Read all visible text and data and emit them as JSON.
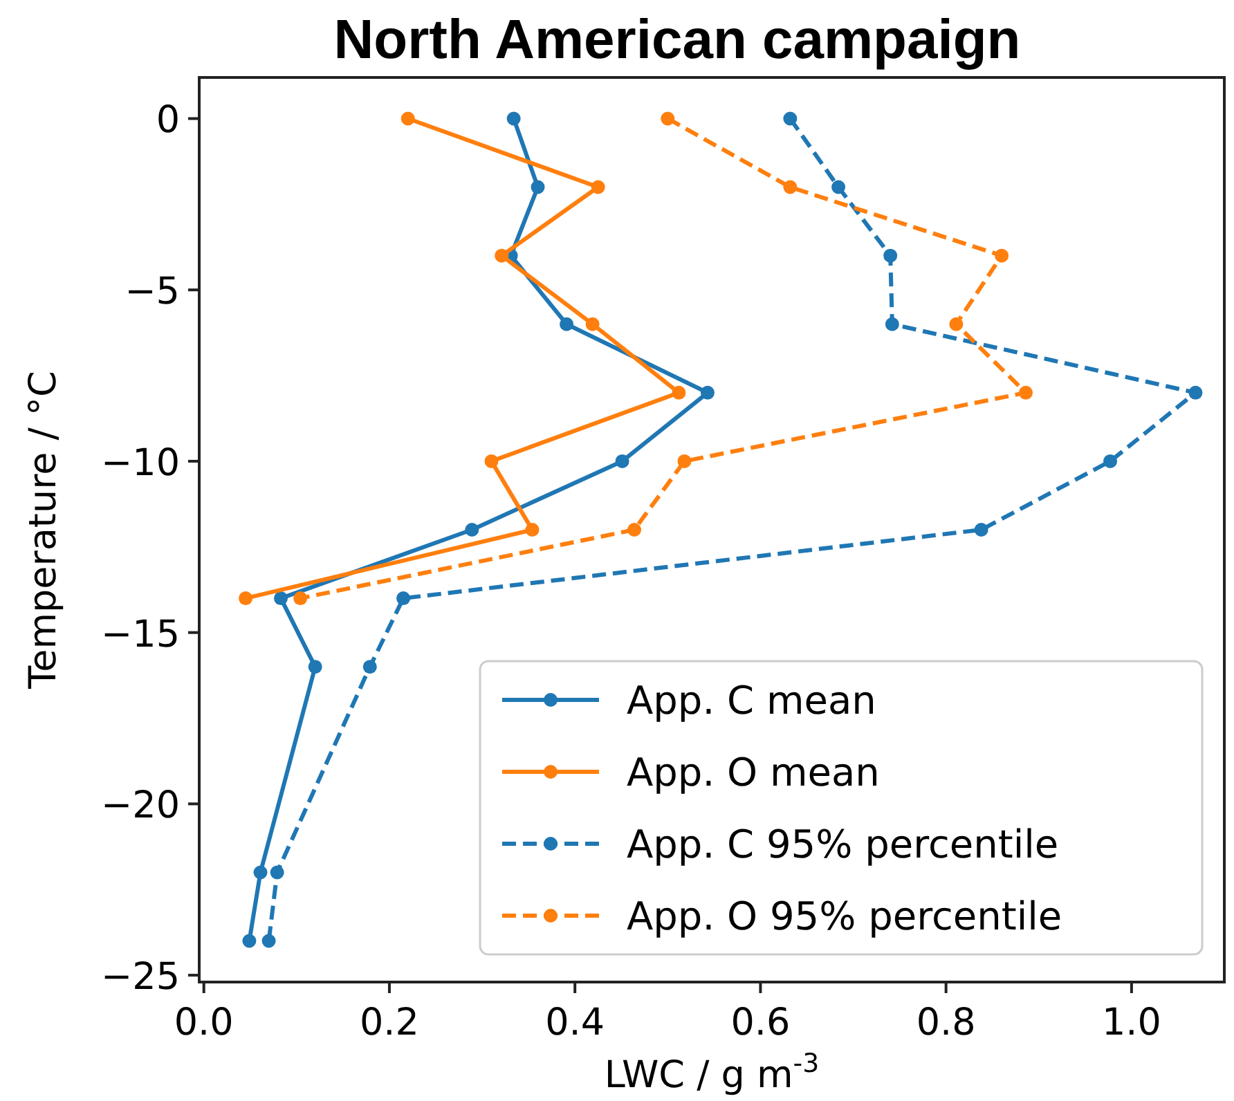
{
  "chart_data": {
    "type": "line",
    "title": "North American campaign",
    "orientation": "horizontal",
    "xlabel": "LWC / g m$^{-3}$",
    "ylabel": "Temperature / °C",
    "xlim": [
      -0.005,
      1.1
    ],
    "ylim": [
      -25.2,
      1.2
    ],
    "xticks": [
      {
        "value": 0,
        "label": "0.0"
      },
      {
        "value": 0.2,
        "label": "0.2"
      },
      {
        "value": 0.4,
        "label": "0.4"
      },
      {
        "value": 0.6,
        "label": "0.6"
      },
      {
        "value": 0.8,
        "label": "0.8"
      },
      {
        "value": 1.0,
        "label": "1.0"
      }
    ],
    "yticks": [
      0,
      {
        "value": -5,
        "label": "−5"
      },
      {
        "value": -10,
        "label": "−10"
      },
      {
        "value": -15,
        "label": "−15"
      },
      {
        "value": -20,
        "label": "−20"
      },
      {
        "value": -25,
        "label": "−25"
      }
    ],
    "marker": "circle",
    "legend": "bottom right",
    "grid": false,
    "series": [
      {
        "name": "App. C mean",
        "color": "#1f77b4",
        "line_style": "solid",
        "x": [
          0,
          -2,
          -4,
          -6,
          -8,
          -10,
          -12,
          -14,
          -16,
          -22,
          -24
        ],
        "values": [
          0.334,
          0.36,
          0.331,
          0.391,
          0.543,
          0.451,
          0.289,
          0.083,
          0.12,
          0.061,
          0.049
        ]
      },
      {
        "name": "App. O mean",
        "color": "#ff7f0e",
        "line_style": "solid",
        "x": [
          0,
          -2,
          -4,
          -6,
          -8,
          -10,
          -12,
          -14
        ],
        "values": [
          0.22,
          0.425,
          0.321,
          0.419,
          0.512,
          0.31,
          0.354,
          0.045
        ]
      },
      {
        "name": "App. C 95% percentile",
        "color": "#1f77b4",
        "line_style": "dashed",
        "x": [
          0,
          -2,
          -4,
          -6,
          -8,
          -10,
          -12,
          -14,
          -16,
          -22,
          -24
        ],
        "values": [
          0.632,
          0.684,
          0.74,
          0.742,
          1.069,
          0.977,
          0.838,
          0.215,
          0.179,
          0.079,
          0.07
        ]
      },
      {
        "name": "App. O 95% percentile",
        "color": "#ff7f0e",
        "line_style": "dashed",
        "x": [
          0,
          -2,
          -4,
          -6,
          -8,
          -10,
          -12,
          -14
        ],
        "values": [
          0.5,
          0.632,
          0.86,
          0.811,
          0.886,
          0.518,
          0.464,
          0.104
        ]
      }
    ]
  }
}
